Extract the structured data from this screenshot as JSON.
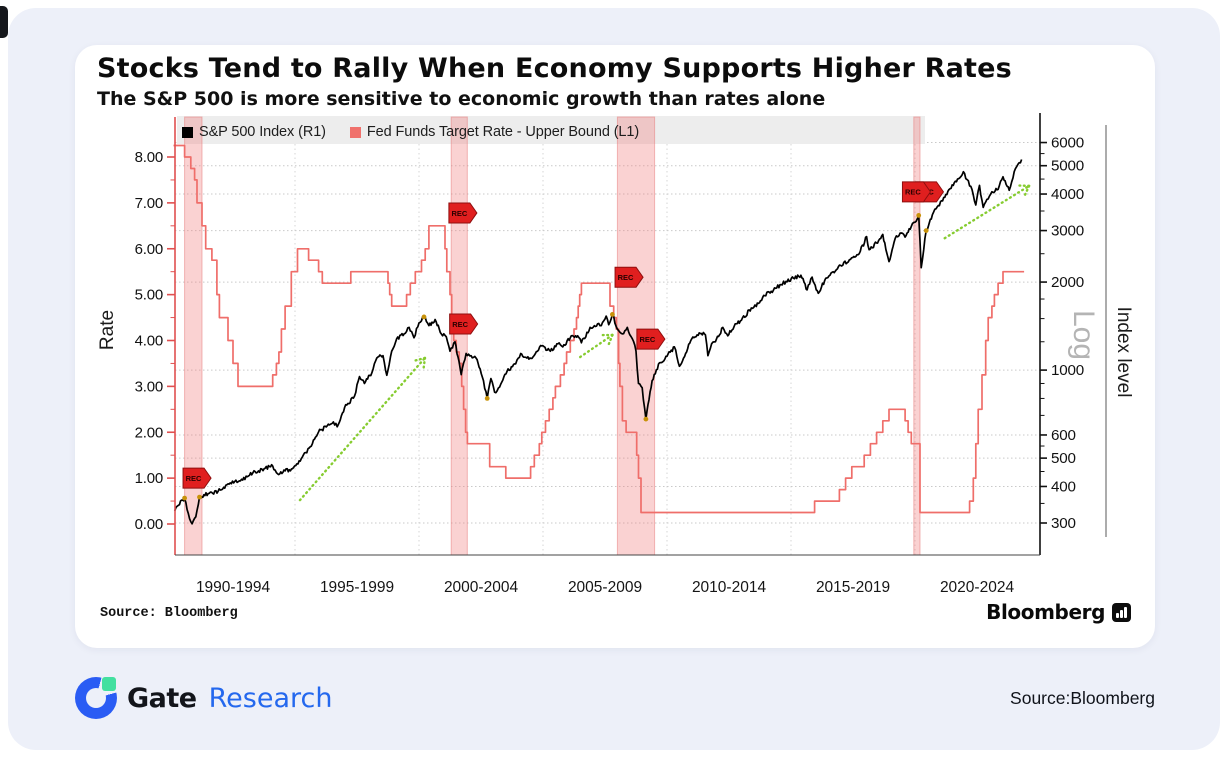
{
  "chart": {
    "title": "Stocks Tend to Rally When Economy Supports Higher Rates",
    "subtitle": "The S&P 500 is more sensitive to economic growth than rates alone",
    "source_note": "Source: Bloomberg",
    "brand": "Bloomberg",
    "left_axis": {
      "label": "Rate",
      "ticks": [
        "8.00",
        "7.00",
        "6.00",
        "5.00",
        "4.00",
        "3.00",
        "2.00",
        "1.00",
        "0.00"
      ]
    },
    "right_axis": {
      "label": "Index level",
      "scale": "Log",
      "ticks": [
        6000,
        5000,
        4000,
        3000,
        2000,
        1000,
        600,
        500,
        400,
        300
      ]
    },
    "x_axis": {
      "labels": [
        "1990-1994",
        "1995-1999",
        "2000-2004",
        "2005-2009",
        "2010-2014",
        "2015-2019",
        "2020-2024"
      ]
    },
    "legend": [
      {
        "label": "S&P 500 Index (R1)",
        "color": "#000000"
      },
      {
        "label": "Fed Funds Target Rate - Upper Bound (L1)",
        "color": "#f0716c"
      }
    ]
  },
  "chart_data": {
    "type": "line",
    "x_unit": "year",
    "x_range": [
      1990.1,
      2025.0
    ],
    "left_axis_range": [
      0,
      8.6
    ],
    "right_axis_log_range": [
      300,
      6000
    ],
    "grid_years": [
      1995,
      2000,
      2005,
      2010,
      2015,
      2020
    ],
    "series": [
      {
        "name": "Fed Funds Target Rate - Upper Bound (L1)",
        "axis": "left",
        "style": "step",
        "color": "#ef6e6a",
        "points": [
          [
            1990.1,
            8.25
          ],
          [
            1990.55,
            8.0
          ],
          [
            1990.8,
            7.75
          ],
          [
            1990.95,
            7.5
          ],
          [
            1991.05,
            7.0
          ],
          [
            1991.25,
            6.5
          ],
          [
            1991.4,
            6.0
          ],
          [
            1991.65,
            5.75
          ],
          [
            1991.85,
            5.0
          ],
          [
            1991.95,
            4.5
          ],
          [
            1992.3,
            4.0
          ],
          [
            1992.5,
            3.5
          ],
          [
            1992.7,
            3.0
          ],
          [
            1994.1,
            3.25
          ],
          [
            1994.25,
            3.5
          ],
          [
            1994.35,
            3.75
          ],
          [
            1994.45,
            4.25
          ],
          [
            1994.6,
            4.75
          ],
          [
            1994.85,
            5.5
          ],
          [
            1995.1,
            6.0
          ],
          [
            1995.55,
            5.75
          ],
          [
            1995.95,
            5.5
          ],
          [
            1996.1,
            5.25
          ],
          [
            1997.25,
            5.5
          ],
          [
            1998.75,
            5.25
          ],
          [
            1998.82,
            5.0
          ],
          [
            1998.9,
            4.75
          ],
          [
            1999.5,
            5.0
          ],
          [
            1999.65,
            5.25
          ],
          [
            1999.85,
            5.5
          ],
          [
            2000.1,
            5.75
          ],
          [
            2000.25,
            6.0
          ],
          [
            2000.4,
            6.5
          ],
          [
            2001.05,
            6.0
          ],
          [
            2001.12,
            5.5
          ],
          [
            2001.25,
            5.0
          ],
          [
            2001.32,
            4.5
          ],
          [
            2001.4,
            4.0
          ],
          [
            2001.5,
            3.75
          ],
          [
            2001.62,
            3.5
          ],
          [
            2001.72,
            3.0
          ],
          [
            2001.8,
            2.5
          ],
          [
            2001.88,
            2.0
          ],
          [
            2001.95,
            1.75
          ],
          [
            2002.85,
            1.25
          ],
          [
            2003.5,
            1.0
          ],
          [
            2004.5,
            1.25
          ],
          [
            2004.65,
            1.5
          ],
          [
            2004.85,
            1.75
          ],
          [
            2004.95,
            2.0
          ],
          [
            2005.1,
            2.25
          ],
          [
            2005.25,
            2.5
          ],
          [
            2005.4,
            2.75
          ],
          [
            2005.5,
            3.0
          ],
          [
            2005.7,
            3.25
          ],
          [
            2005.85,
            3.5
          ],
          [
            2005.95,
            3.75
          ],
          [
            2006.1,
            4.0
          ],
          [
            2006.25,
            4.25
          ],
          [
            2006.35,
            4.5
          ],
          [
            2006.42,
            4.75
          ],
          [
            2006.48,
            5.0
          ],
          [
            2006.55,
            5.25
          ],
          [
            2007.7,
            4.75
          ],
          [
            2007.85,
            4.5
          ],
          [
            2007.95,
            4.25
          ],
          [
            2008.05,
            3.5
          ],
          [
            2008.1,
            3.0
          ],
          [
            2008.2,
            2.25
          ],
          [
            2008.35,
            2.0
          ],
          [
            2008.78,
            1.5
          ],
          [
            2008.85,
            1.0
          ],
          [
            2008.95,
            0.25
          ],
          [
            2015.95,
            0.5
          ],
          [
            2016.95,
            0.75
          ],
          [
            2017.2,
            1.0
          ],
          [
            2017.45,
            1.25
          ],
          [
            2017.95,
            1.5
          ],
          [
            2018.2,
            1.75
          ],
          [
            2018.45,
            2.0
          ],
          [
            2018.7,
            2.25
          ],
          [
            2018.95,
            2.5
          ],
          [
            2019.6,
            2.25
          ],
          [
            2019.72,
            2.0
          ],
          [
            2019.85,
            1.75
          ],
          [
            2020.2,
            0.25
          ],
          [
            2022.2,
            0.5
          ],
          [
            2022.35,
            1.0
          ],
          [
            2022.45,
            1.75
          ],
          [
            2022.55,
            2.5
          ],
          [
            2022.7,
            3.25
          ],
          [
            2022.85,
            4.0
          ],
          [
            2022.95,
            4.5
          ],
          [
            2023.1,
            4.75
          ],
          [
            2023.2,
            5.0
          ],
          [
            2023.35,
            5.25
          ],
          [
            2023.55,
            5.5
          ],
          [
            2024.4,
            5.5
          ]
        ]
      },
      {
        "name": "S&P 500 Index (R1)",
        "axis": "right",
        "style": "line",
        "color": "#000000",
        "points": [
          [
            1990.15,
            330
          ],
          [
            1990.3,
            345
          ],
          [
            1990.55,
            365
          ],
          [
            1990.75,
            310
          ],
          [
            1990.85,
            298
          ],
          [
            1991.0,
            315
          ],
          [
            1991.15,
            368
          ],
          [
            1991.5,
            378
          ],
          [
            1991.9,
            385
          ],
          [
            1992.3,
            408
          ],
          [
            1992.8,
            418
          ],
          [
            1993.3,
            445
          ],
          [
            1993.8,
            462
          ],
          [
            1994.1,
            470
          ],
          [
            1994.3,
            442
          ],
          [
            1994.6,
            452
          ],
          [
            1994.9,
            460
          ],
          [
            1995.3,
            505
          ],
          [
            1995.7,
            560
          ],
          [
            1995.95,
            615
          ],
          [
            1996.3,
            645
          ],
          [
            1996.55,
            665
          ],
          [
            1996.7,
            640
          ],
          [
            1997.0,
            745
          ],
          [
            1997.4,
            815
          ],
          [
            1997.6,
            950
          ],
          [
            1997.8,
            900
          ],
          [
            1998.1,
            980
          ],
          [
            1998.3,
            1100
          ],
          [
            1998.55,
            1120
          ],
          [
            1998.7,
            960
          ],
          [
            1998.9,
            1160
          ],
          [
            1999.1,
            1280
          ],
          [
            1999.4,
            1330
          ],
          [
            1999.6,
            1400
          ],
          [
            1999.8,
            1290
          ],
          [
            2000.0,
            1450
          ],
          [
            2000.2,
            1520
          ],
          [
            2000.4,
            1420
          ],
          [
            2000.65,
            1490
          ],
          [
            2000.9,
            1330
          ],
          [
            2001.1,
            1300
          ],
          [
            2001.25,
            1160
          ],
          [
            2001.45,
            1250
          ],
          [
            2001.7,
            965
          ],
          [
            2001.9,
            1140
          ],
          [
            2002.1,
            1120
          ],
          [
            2002.3,
            1100
          ],
          [
            2002.55,
            950
          ],
          [
            2002.75,
            800
          ],
          [
            2002.9,
            935
          ],
          [
            2003.05,
            840
          ],
          [
            2003.25,
            875
          ],
          [
            2003.55,
            990
          ],
          [
            2003.9,
            1050
          ],
          [
            2004.1,
            1140
          ],
          [
            2004.35,
            1100
          ],
          [
            2004.6,
            1110
          ],
          [
            2004.95,
            1210
          ],
          [
            2005.3,
            1160
          ],
          [
            2005.6,
            1230
          ],
          [
            2005.8,
            1200
          ],
          [
            2006.1,
            1290
          ],
          [
            2006.4,
            1310
          ],
          [
            2006.55,
            1240
          ],
          [
            2006.9,
            1400
          ],
          [
            2007.2,
            1440
          ],
          [
            2007.35,
            1420
          ],
          [
            2007.55,
            1530
          ],
          [
            2007.65,
            1430
          ],
          [
            2007.8,
            1550
          ],
          [
            2008.0,
            1380
          ],
          [
            2008.2,
            1330
          ],
          [
            2008.4,
            1400
          ],
          [
            2008.6,
            1280
          ],
          [
            2008.75,
            1160
          ],
          [
            2008.85,
            900
          ],
          [
            2009.0,
            870
          ],
          [
            2009.15,
            680
          ],
          [
            2009.4,
            920
          ],
          [
            2009.7,
            1060
          ],
          [
            2010.0,
            1115
          ],
          [
            2010.3,
            1200
          ],
          [
            2010.5,
            1030
          ],
          [
            2010.75,
            1140
          ],
          [
            2011.0,
            1280
          ],
          [
            2011.3,
            1340
          ],
          [
            2011.55,
            1320
          ],
          [
            2011.65,
            1120
          ],
          [
            2011.8,
            1230
          ],
          [
            2011.95,
            1250
          ],
          [
            2012.25,
            1400
          ],
          [
            2012.45,
            1310
          ],
          [
            2012.75,
            1440
          ],
          [
            2013.0,
            1480
          ],
          [
            2013.4,
            1630
          ],
          [
            2013.6,
            1650
          ],
          [
            2013.9,
            1800
          ],
          [
            2014.2,
            1860
          ],
          [
            2014.6,
            1960
          ],
          [
            2014.8,
            2010
          ],
          [
            2015.1,
            2060
          ],
          [
            2015.4,
            2110
          ],
          [
            2015.65,
            1880
          ],
          [
            2015.85,
            2080
          ],
          [
            2016.1,
            1830
          ],
          [
            2016.4,
            2060
          ],
          [
            2016.7,
            2170
          ],
          [
            2017.0,
            2280
          ],
          [
            2017.4,
            2390
          ],
          [
            2017.75,
            2500
          ],
          [
            2018.05,
            2860
          ],
          [
            2018.15,
            2580
          ],
          [
            2018.45,
            2720
          ],
          [
            2018.7,
            2910
          ],
          [
            2018.95,
            2350
          ],
          [
            2019.2,
            2820
          ],
          [
            2019.4,
            2940
          ],
          [
            2019.6,
            2850
          ],
          [
            2019.85,
            3100
          ],
          [
            2020.05,
            3230
          ],
          [
            2020.15,
            3380
          ],
          [
            2020.25,
            2240
          ],
          [
            2020.45,
            3000
          ],
          [
            2020.7,
            3400
          ],
          [
            2020.9,
            3620
          ],
          [
            2021.2,
            3900
          ],
          [
            2021.5,
            4300
          ],
          [
            2021.8,
            4540
          ],
          [
            2021.95,
            4770
          ],
          [
            2022.1,
            4480
          ],
          [
            2022.3,
            4150
          ],
          [
            2022.45,
            3670
          ],
          [
            2022.6,
            4280
          ],
          [
            2022.75,
            3600
          ],
          [
            2022.95,
            3850
          ],
          [
            2023.1,
            4070
          ],
          [
            2023.35,
            4150
          ],
          [
            2023.55,
            4580
          ],
          [
            2023.8,
            4120
          ],
          [
            2024.0,
            4770
          ],
          [
            2024.15,
            5050
          ],
          [
            2024.3,
            5250
          ]
        ]
      }
    ],
    "recession_bands": [
      {
        "from": 1990.55,
        "to": 1991.25
      },
      {
        "from": 2001.3,
        "to": 2001.95
      },
      {
        "from": 2008.0,
        "to": 2009.5
      },
      {
        "from": 2019.95,
        "to": 2020.2
      }
    ],
    "rec_markers": [
      {
        "year": 1991.05,
        "rate": 1.0,
        "label": "REC"
      },
      {
        "year": 2001.77,
        "rate": 6.78,
        "label": "REC"
      },
      {
        "year": 2001.8,
        "rate": 4.36,
        "label": "REC"
      },
      {
        "year": 2008.47,
        "rate": 5.38,
        "label": "REC"
      },
      {
        "year": 2009.35,
        "rate": 4.03,
        "label": "REC"
      },
      {
        "year": 2020.26,
        "rate": 7.24,
        "label": "REC",
        "double": true
      }
    ],
    "trend_arrows": [
      {
        "from": [
          1995.2,
          0.52
        ],
        "to": [
          2000.24,
          3.62
        ]
      },
      {
        "from": [
          2006.5,
          3.64
        ],
        "to": [
          2007.8,
          4.12
        ]
      },
      {
        "from": [
          2021.2,
          6.23
        ],
        "to": [
          2024.6,
          7.37
        ]
      }
    ],
    "pivot_dots": [
      [
        1990.55,
        365
      ],
      [
        1991.15,
        368
      ],
      [
        2000.2,
        1520
      ],
      [
        2002.75,
        800
      ],
      [
        2007.8,
        1550
      ],
      [
        2009.15,
        680
      ],
      [
        2020.15,
        3380
      ],
      [
        2020.45,
        3000
      ]
    ],
    "colors": {
      "recession_band": "#f07e7e",
      "trend_arrow": "#86cc30",
      "rec_marker": "#e01f1f",
      "grid": "#c9c9c9",
      "left_axis": "#e05050",
      "right_axis": "#111111"
    }
  },
  "footer": {
    "gate": "Gate",
    "research": "Research",
    "source": "Source:Bloomberg"
  }
}
